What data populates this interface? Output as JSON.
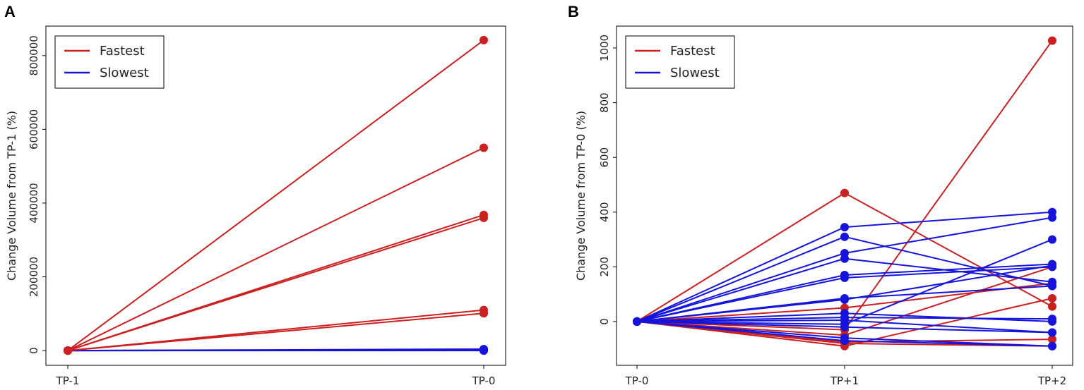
{
  "chart_data": [
    {
      "panel": "A",
      "type": "line",
      "xlabel": "",
      "ylabel": "Change Volume from TP-1 (%)",
      "categories": [
        "TP-1",
        "TP-0"
      ],
      "ylim": [
        -40000,
        880000
      ],
      "yticks": [
        0,
        200000,
        400000,
        600000,
        800000
      ],
      "ytick_labels": [
        "0",
        "200000",
        "400000",
        "600000",
        "800000"
      ],
      "legend": {
        "position": "top-left",
        "entries": [
          {
            "label": "Fastest",
            "color": "#cc1f1f"
          },
          {
            "label": "Slowest",
            "color": "#1414dd"
          }
        ]
      },
      "series": [
        {
          "group": "Slowest",
          "color": "#1414dd",
          "values": [
            0,
            0
          ]
        },
        {
          "group": "Slowest",
          "color": "#1414dd",
          "values": [
            0,
            1000
          ]
        },
        {
          "group": "Slowest",
          "color": "#1414dd",
          "values": [
            0,
            2500
          ]
        },
        {
          "group": "Slowest",
          "color": "#1414dd",
          "values": [
            0,
            4000
          ]
        },
        {
          "group": "Slowest",
          "color": "#1414dd",
          "values": [
            0,
            1500
          ]
        },
        {
          "group": "Fastest",
          "color": "#cc1f1f",
          "values": [
            0,
            842000
          ]
        },
        {
          "group": "Fastest",
          "color": "#cc1f1f",
          "values": [
            0,
            550000
          ]
        },
        {
          "group": "Fastest",
          "color": "#cc1f1f",
          "values": [
            0,
            368000
          ]
        },
        {
          "group": "Fastest",
          "color": "#cc1f1f",
          "values": [
            0,
            360000
          ]
        },
        {
          "group": "Fastest",
          "color": "#cc1f1f",
          "values": [
            0,
            110000
          ]
        },
        {
          "group": "Fastest",
          "color": "#cc1f1f",
          "values": [
            0,
            101000
          ]
        }
      ]
    },
    {
      "panel": "B",
      "type": "line",
      "xlabel": "",
      "ylabel": "Change Volume from TP-0 (%)",
      "categories": [
        "TP-0",
        "TP+1",
        "TP+2"
      ],
      "ylim": [
        -160,
        1080
      ],
      "yticks": [
        0,
        200,
        400,
        600,
        800,
        1000
      ],
      "ytick_labels": [
        "0",
        "200",
        "400",
        "600",
        "800",
        "1000"
      ],
      "legend": {
        "position": "top-left",
        "entries": [
          {
            "label": "Fastest",
            "color": "#cc1f1f"
          },
          {
            "label": "Slowest",
            "color": "#1414dd"
          }
        ]
      },
      "series": [
        {
          "group": "Fastest",
          "color": "#cc1f1f",
          "values": [
            0,
            470,
            55
          ]
        },
        {
          "group": "Fastest",
          "color": "#cc1f1f",
          "values": [
            0,
            -30,
            1027
          ]
        },
        {
          "group": "Fastest",
          "color": "#cc1f1f",
          "values": [
            0,
            50,
            140
          ]
        },
        {
          "group": "Fastest",
          "color": "#cc1f1f",
          "values": [
            0,
            -50,
            200
          ]
        },
        {
          "group": "Fastest",
          "color": "#cc1f1f",
          "values": [
            0,
            -90,
            85
          ]
        },
        {
          "group": "Fastest",
          "color": "#cc1f1f",
          "values": [
            0,
            -75,
            -65
          ]
        },
        {
          "group": "Fastest",
          "color": "#cc1f1f",
          "values": [
            0,
            -80,
            -90
          ]
        },
        {
          "group": "Slowest",
          "color": "#1414dd",
          "values": [
            0,
            345,
            400
          ]
        },
        {
          "group": "Slowest",
          "color": "#1414dd",
          "values": [
            0,
            310,
            130
          ]
        },
        {
          "group": "Slowest",
          "color": "#1414dd",
          "values": [
            0,
            250,
            380
          ]
        },
        {
          "group": "Slowest",
          "color": "#1414dd",
          "values": [
            0,
            230,
            145
          ]
        },
        {
          "group": "Slowest",
          "color": "#1414dd",
          "values": [
            0,
            170,
            210
          ]
        },
        {
          "group": "Slowest",
          "color": "#1414dd",
          "values": [
            0,
            160,
            200
          ]
        },
        {
          "group": "Slowest",
          "color": "#1414dd",
          "values": [
            0,
            85,
            130
          ]
        },
        {
          "group": "Slowest",
          "color": "#1414dd",
          "values": [
            0,
            80,
            205
          ]
        },
        {
          "group": "Slowest",
          "color": "#1414dd",
          "values": [
            0,
            30,
            0
          ]
        },
        {
          "group": "Slowest",
          "color": "#1414dd",
          "values": [
            0,
            15,
            10
          ]
        },
        {
          "group": "Slowest",
          "color": "#1414dd",
          "values": [
            0,
            5,
            -40
          ]
        },
        {
          "group": "Slowest",
          "color": "#1414dd",
          "values": [
            0,
            -10,
            300
          ]
        },
        {
          "group": "Slowest",
          "color": "#1414dd",
          "values": [
            0,
            -20,
            -40
          ]
        },
        {
          "group": "Slowest",
          "color": "#1414dd",
          "values": [
            0,
            -60,
            -90
          ]
        },
        {
          "group": "Slowest",
          "color": "#1414dd",
          "values": [
            0,
            -70,
            -90
          ]
        }
      ]
    }
  ]
}
